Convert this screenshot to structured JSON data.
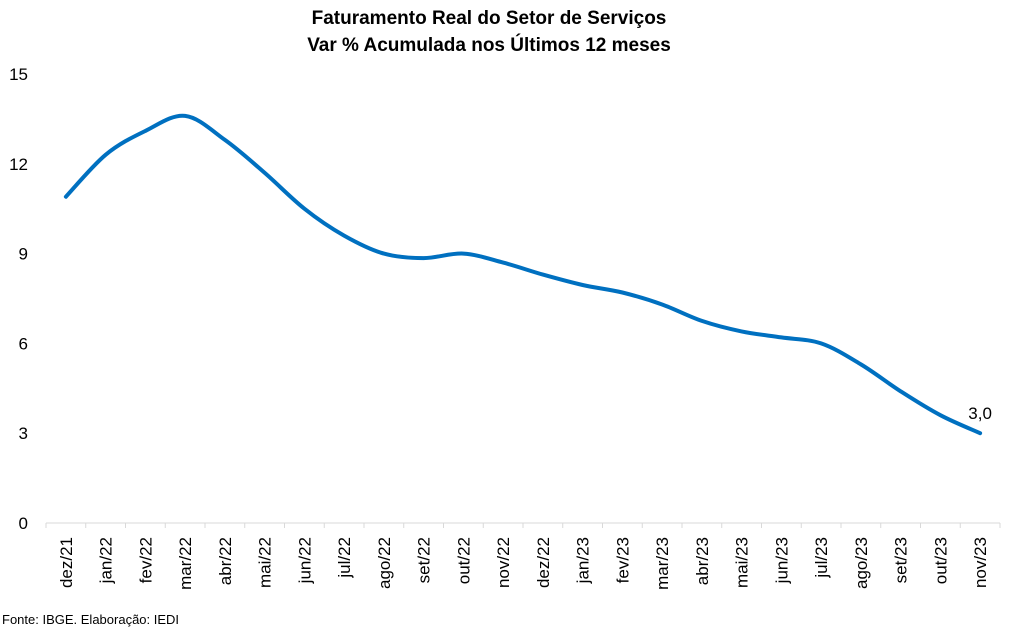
{
  "chart_data": {
    "type": "line",
    "title": "Faturamento Real do Setor de Serviços",
    "subtitle": "Var % Acumulada nos Últimos 12 meses",
    "categories": [
      "dez/21",
      "jan/22",
      "fev/22",
      "mar/22",
      "abr/22",
      "mai/22",
      "jun/22",
      "jul/22",
      "ago/22",
      "set/22",
      "out/22",
      "nov/22",
      "dez/22",
      "jan/23",
      "fev/23",
      "mar/23",
      "abr/23",
      "mai/23",
      "jun/23",
      "jul/23",
      "ago/23",
      "set/23",
      "out/23",
      "nov/23"
    ],
    "series": [
      {
        "name": "",
        "values": [
          10.9,
          12.3,
          13.1,
          13.6,
          12.8,
          11.7,
          10.5,
          9.6,
          9.0,
          8.85,
          9.0,
          8.7,
          8.3,
          7.95,
          7.7,
          7.3,
          6.75,
          6.4,
          6.2,
          6.0,
          5.3,
          4.4,
          3.6,
          3.0
        ]
      }
    ],
    "ylim": [
      0,
      15
    ],
    "yticks": [
      0,
      3,
      6,
      9,
      12,
      15
    ],
    "ytick_labels": [
      "0",
      "3",
      "6",
      "9",
      "12",
      "15"
    ],
    "annotation": "3,0",
    "grid": false,
    "line_color": "#0070C0"
  },
  "source": "Fonte: IBGE. Elaboração: IEDI"
}
